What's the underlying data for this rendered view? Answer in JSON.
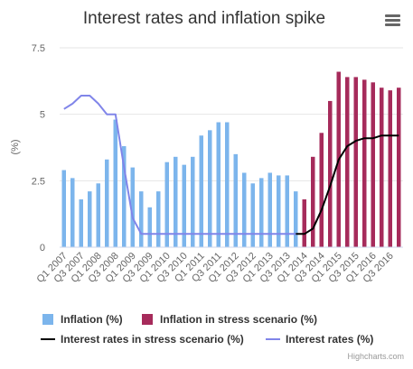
{
  "chart_data": {
    "type": "bar",
    "title": "Interest rates and inflation spike",
    "ylabel": "(%)",
    "ylim": [
      0,
      7.5
    ],
    "yticks": [
      "0",
      "2.5",
      "5",
      "7.5"
    ],
    "grid": true,
    "legend_position": "bottom",
    "categories": [
      "Q1 2007",
      "Q2 2007",
      "Q3 2007",
      "Q4 2007",
      "Q1 2008",
      "Q2 2008",
      "Q3 2008",
      "Q4 2008",
      "Q1 2009",
      "Q2 2009",
      "Q3 2009",
      "Q4 2009",
      "Q1 2010",
      "Q2 2010",
      "Q3 2010",
      "Q4 2010",
      "Q1 2011",
      "Q2 2011",
      "Q3 2011",
      "Q4 2011",
      "Q1 2012",
      "Q2 2012",
      "Q3 2012",
      "Q4 2012",
      "Q1 2013",
      "Q2 2013",
      "Q3 2013",
      "Q4 2013",
      "Q1 2014",
      "Q2 2014",
      "Q3 2014",
      "Q4 2014",
      "Q1 2015",
      "Q2 2015",
      "Q3 2015",
      "Q4 2015",
      "Q1 2016",
      "Q2 2016",
      "Q3 2016",
      "Q4 2016"
    ],
    "xtick_labels": [
      "Q1 2007",
      "Q3 2007",
      "Q1 2008",
      "Q3 2008",
      "Q1 2009",
      "Q3 2009",
      "Q1 2010",
      "Q3 2010",
      "Q1 2011",
      "Q3 2011",
      "Q1 2012",
      "Q3 2012",
      "Q1 2013",
      "Q3 2013",
      "Q1 2014",
      "Q3 2014",
      "Q1 2015",
      "Q3 2015",
      "Q1 2016",
      "Q3 2016"
    ],
    "series": [
      {
        "name": "Inflation (%)",
        "type": "bar",
        "color": "#7cb5ec",
        "values": [
          2.9,
          2.6,
          1.8,
          2.1,
          2.4,
          3.3,
          4.8,
          3.8,
          3.0,
          2.1,
          1.5,
          2.1,
          3.2,
          3.4,
          3.1,
          3.4,
          4.2,
          4.4,
          4.7,
          4.7,
          3.5,
          2.8,
          2.4,
          2.6,
          2.8,
          2.7,
          2.7,
          2.1,
          null,
          null,
          null,
          null,
          null,
          null,
          null,
          null,
          null,
          null,
          null,
          null
        ]
      },
      {
        "name": "Inflation in stress scenario (%)",
        "type": "bar",
        "color": "#a62b5b",
        "values": [
          null,
          null,
          null,
          null,
          null,
          null,
          null,
          null,
          null,
          null,
          null,
          null,
          null,
          null,
          null,
          null,
          null,
          null,
          null,
          null,
          null,
          null,
          null,
          null,
          null,
          null,
          null,
          null,
          1.8,
          3.4,
          4.3,
          5.5,
          6.6,
          6.4,
          6.4,
          6.3,
          6.2,
          6.0,
          5.9,
          6.0
        ]
      },
      {
        "name": "Interest rates in stress scenario (%)",
        "type": "line",
        "color": "#000000",
        "values": [
          null,
          null,
          null,
          null,
          null,
          null,
          null,
          null,
          null,
          null,
          null,
          null,
          null,
          null,
          null,
          null,
          null,
          null,
          null,
          null,
          null,
          null,
          null,
          null,
          null,
          null,
          null,
          0.5,
          0.5,
          0.7,
          1.4,
          2.3,
          3.3,
          3.8,
          4.0,
          4.1,
          4.1,
          4.2,
          4.2,
          4.2
        ]
      },
      {
        "name": "Interest rates (%)",
        "type": "line",
        "color": "#8085e9",
        "values": [
          5.2,
          5.4,
          5.7,
          5.7,
          5.4,
          5.0,
          5.0,
          3.0,
          1.1,
          0.5,
          0.5,
          0.5,
          0.5,
          0.5,
          0.5,
          0.5,
          0.5,
          0.5,
          0.5,
          0.5,
          0.5,
          0.5,
          0.5,
          0.5,
          0.5,
          0.5,
          0.5,
          0.5,
          null,
          null,
          null,
          null,
          null,
          null,
          null,
          null,
          null,
          null,
          null,
          null
        ]
      }
    ]
  },
  "credit": "Highcharts.com",
  "menu_icon": "hamburger-menu-icon"
}
